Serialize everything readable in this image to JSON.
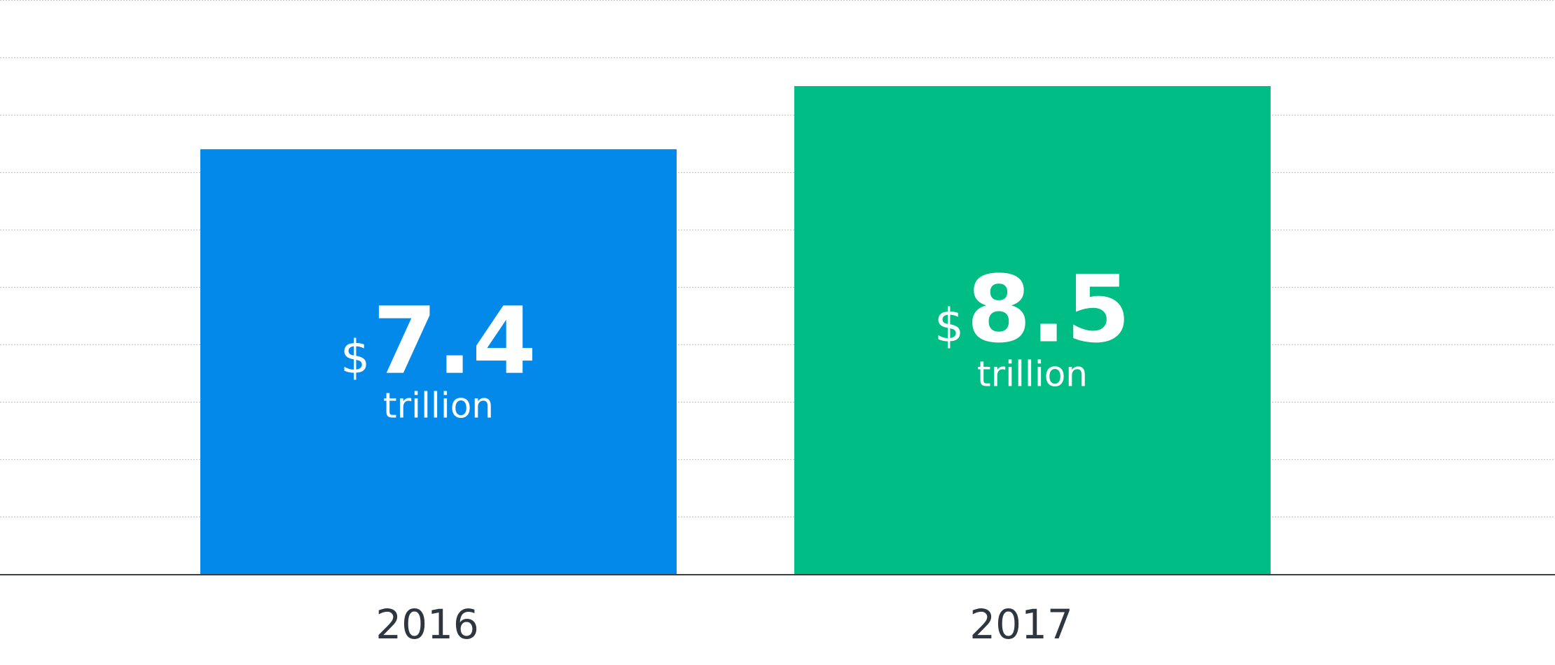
{
  "chart_data": {
    "type": "bar",
    "categories": [
      "2016",
      "2017"
    ],
    "values": [
      7.4,
      8.5
    ],
    "value_prefix": "$",
    "value_unit": "trillion",
    "bar_colors": [
      "#0289e9",
      "#00bd86"
    ],
    "ylim": [
      0,
      10
    ],
    "grid": true,
    "title": "",
    "xlabel": "",
    "ylabel": ""
  },
  "colors": {
    "background": "#ffffff",
    "gridline": "#c9c9c9",
    "axis": "#3a3f48",
    "category_label": "#2f3640",
    "bar_label": "#ffffff"
  }
}
